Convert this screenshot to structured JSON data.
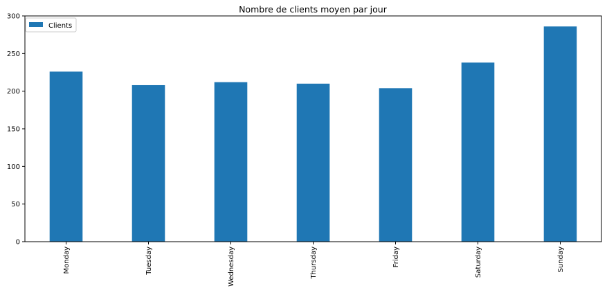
{
  "chart_data": {
    "type": "bar",
    "title": "Nombre de clients moyen par jour",
    "xlabel": "",
    "ylabel": "",
    "categories": [
      "Monday",
      "Tuesday",
      "Wednesday",
      "Thursday",
      "Friday",
      "Saturday",
      "Sunday"
    ],
    "series": [
      {
        "name": "Clients",
        "color": "#1f77b4",
        "values": [
          226,
          208,
          212,
          210,
          204,
          238,
          286
        ]
      }
    ],
    "ylim": [
      0,
      300
    ],
    "yticks": [
      0,
      50,
      100,
      150,
      200,
      250,
      300
    ],
    "grid": false,
    "legend_position": "top-left"
  }
}
